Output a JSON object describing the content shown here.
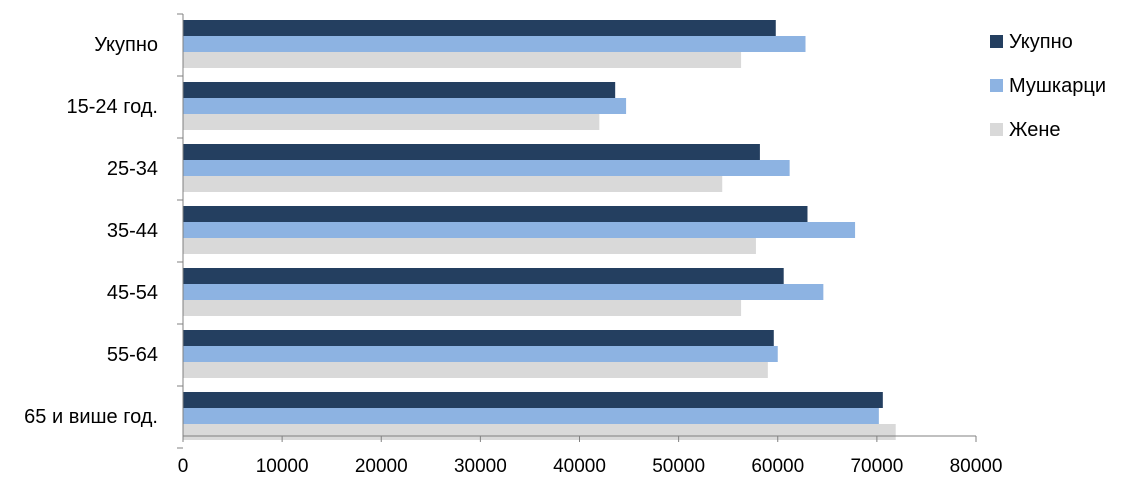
{
  "chart_data": {
    "type": "bar",
    "orientation": "horizontal",
    "categories": [
      "Укупно",
      "15-24 год.",
      "25-34",
      "35-44",
      "45-54",
      "55-64",
      "65 и више год."
    ],
    "series": [
      {
        "name": "Укупно",
        "color": "#243f60",
        "values": [
          59800,
          43600,
          58200,
          63000,
          60600,
          59600,
          70600
        ]
      },
      {
        "name": "Мушкарци",
        "color": "#8db3e2",
        "values": [
          62800,
          44700,
          61200,
          67800,
          64600,
          60000,
          70200
        ]
      },
      {
        "name": "Жене",
        "color": "#d9d9d9",
        "values": [
          56300,
          42000,
          54400,
          57800,
          56300,
          59000,
          71900
        ]
      }
    ],
    "xlim": [
      0,
      80000
    ],
    "xticks": [
      "0",
      "10000",
      "20000",
      "30000",
      "40000",
      "50000",
      "60000",
      "70000",
      "80000"
    ],
    "grid": false,
    "legend_position": "right"
  }
}
